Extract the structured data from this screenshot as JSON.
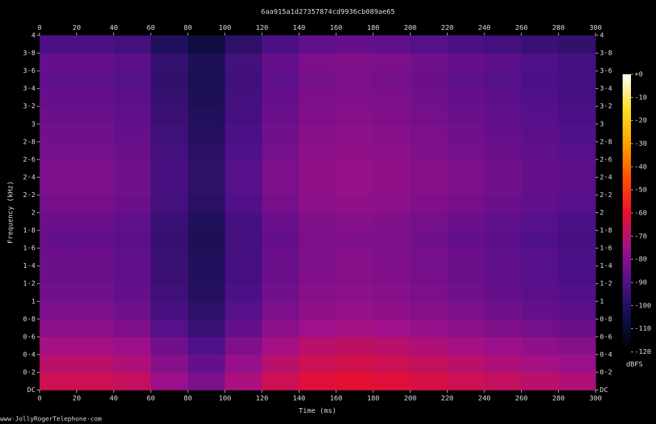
{
  "chart_data": {
    "type": "heatmap",
    "title": "6aa915a1d27357874cd9936cb089ae65",
    "x_label": "Time (ms)",
    "y_label": "Frequency (kHz)",
    "colorbar_label": "dBFS",
    "footer": "www·JollyRogerTelephone·com",
    "xlim": [
      0,
      300
    ],
    "ylim": [
      0,
      4
    ],
    "xticks": [
      0,
      20,
      40,
      60,
      80,
      100,
      120,
      140,
      160,
      180,
      200,
      220,
      240,
      260,
      280,
      300
    ],
    "yticks": [
      {
        "value": 0,
        "label": "DC"
      },
      {
        "value": 0.2,
        "label": "0·2"
      },
      {
        "value": 0.4,
        "label": "0·4"
      },
      {
        "value": 0.6,
        "label": "0·6"
      },
      {
        "value": 0.8,
        "label": "0·8"
      },
      1,
      {
        "value": 1.2,
        "label": "1·2"
      },
      {
        "value": 1.4,
        "label": "1·4"
      },
      {
        "value": 1.6,
        "label": "1·6"
      },
      {
        "value": 1.8,
        "label": "1·8"
      },
      2,
      {
        "value": 2.2,
        "label": "2·2"
      },
      {
        "value": 2.4,
        "label": "2·4"
      },
      {
        "value": 2.6,
        "label": "2·6"
      },
      {
        "value": 2.8,
        "label": "2·8"
      },
      3,
      {
        "value": 3.2,
        "label": "3·2"
      },
      {
        "value": 3.4,
        "label": "3·4"
      },
      {
        "value": 3.6,
        "label": "3·6"
      },
      {
        "value": 3.8,
        "label": "3·8"
      },
      4
    ],
    "zlim": [
      -120,
      0
    ],
    "zticks": [
      {
        "value": 0,
        "label": "+0"
      },
      -10,
      -20,
      -30,
      -40,
      -50,
      -60,
      -70,
      -80,
      -90,
      -100,
      -110,
      -120
    ],
    "colormap": [
      "#000000",
      "#10104a",
      "#50108a",
      "#a0108a",
      "#e8102e",
      "#ff5000",
      "#ffa000",
      "#ffe020",
      "#ffffff"
    ],
    "xbins": [
      0,
      20,
      40,
      60,
      80,
      100,
      120,
      140,
      160,
      180,
      200,
      220,
      240,
      260,
      280,
      300
    ],
    "ybins": [
      0,
      0.2,
      0.4,
      0.6,
      0.8,
      1,
      1.2,
      1.4,
      1.6,
      1.8,
      2,
      2.2,
      2.4,
      2.6,
      2.8,
      3,
      3.2,
      3.4,
      3.6,
      3.8,
      4
    ],
    "z": [
      [
        -66,
        -66,
        -68,
        -76,
        -82,
        -73,
        -66,
        -62,
        -61,
        -62,
        -64,
        -66,
        -68,
        -70,
        -72
      ],
      [
        -70,
        -70,
        -72,
        -80,
        -86,
        -77,
        -70,
        -66,
        -65,
        -66,
        -68,
        -70,
        -72,
        -74,
        -76
      ],
      [
        -74,
        -74,
        -76,
        -84,
        -90,
        -81,
        -74,
        -70,
        -69,
        -70,
        -72,
        -74,
        -76,
        -78,
        -80
      ],
      [
        -79,
        -79,
        -81,
        -89,
        -95,
        -86,
        -79,
        -75,
        -74,
        -75,
        -77,
        -79,
        -81,
        -83,
        -85
      ],
      [
        -82,
        -82,
        -84,
        -92,
        -98,
        -89,
        -82,
        -78,
        -77,
        -78,
        -80,
        -82,
        -84,
        -86,
        -88
      ],
      [
        -84,
        -84,
        -86,
        -94,
        -100,
        -91,
        -84,
        -80,
        -79,
        -80,
        -82,
        -84,
        -86,
        -88,
        -90
      ],
      [
        -85,
        -85,
        -87,
        -95,
        -101,
        -92,
        -85,
        -81,
        -80,
        -81,
        -83,
        -85,
        -87,
        -89,
        -91
      ],
      [
        -85,
        -85,
        -87,
        -95,
        -101,
        -92,
        -85,
        -81,
        -80,
        -81,
        -83,
        -85,
        -87,
        -89,
        -91
      ],
      [
        -86,
        -86,
        -88,
        -96,
        -102,
        -93,
        -86,
        -82,
        -81,
        -82,
        -84,
        -86,
        -88,
        -90,
        -92
      ],
      [
        -85,
        -85,
        -87,
        -95,
        -101,
        -92,
        -85,
        -81,
        -80,
        -81,
        -83,
        -85,
        -87,
        -89,
        -91
      ],
      [
        -83,
        -83,
        -85,
        -93,
        -99,
        -90,
        -83,
        -79,
        -78,
        -79,
        -81,
        -83,
        -85,
        -87,
        -89
      ],
      [
        -82,
        -82,
        -84,
        -92,
        -98,
        -89,
        -82,
        -78,
        -77,
        -78,
        -80,
        -82,
        -84,
        -86,
        -88
      ],
      [
        -82,
        -82,
        -84,
        -92,
        -98,
        -89,
        -82,
        -78,
        -77,
        -78,
        -80,
        -82,
        -84,
        -86,
        -88
      ],
      [
        -83,
        -83,
        -85,
        -93,
        -99,
        -90,
        -83,
        -79,
        -78,
        -79,
        -81,
        -83,
        -85,
        -87,
        -89
      ],
      [
        -84,
        -84,
        -86,
        -94,
        -100,
        -91,
        -84,
        -80,
        -79,
        -80,
        -82,
        -84,
        -86,
        -88,
        -90
      ],
      [
        -85,
        -85,
        -87,
        -95,
        -101,
        -92,
        -85,
        -81,
        -80,
        -81,
        -83,
        -85,
        -87,
        -89,
        -91
      ],
      [
        -86,
        -86,
        -88,
        -96,
        -102,
        -93,
        -86,
        -82,
        -81,
        -82,
        -84,
        -86,
        -88,
        -90,
        -92
      ],
      [
        -87,
        -87,
        -89,
        -97,
        -103,
        -94,
        -87,
        -83,
        -82,
        -83,
        -85,
        -87,
        -89,
        -91,
        -93
      ],
      [
        -86,
        -86,
        -88,
        -96,
        -102,
        -93,
        -86,
        -82,
        -81,
        -82,
        -84,
        -86,
        -88,
        -90,
        -92
      ],
      [
        -91,
        -91,
        -93,
        -101,
        -107,
        -98,
        -91,
        -87,
        -86,
        -87,
        -89,
        -91,
        -93,
        -95,
        -97
      ]
    ]
  }
}
